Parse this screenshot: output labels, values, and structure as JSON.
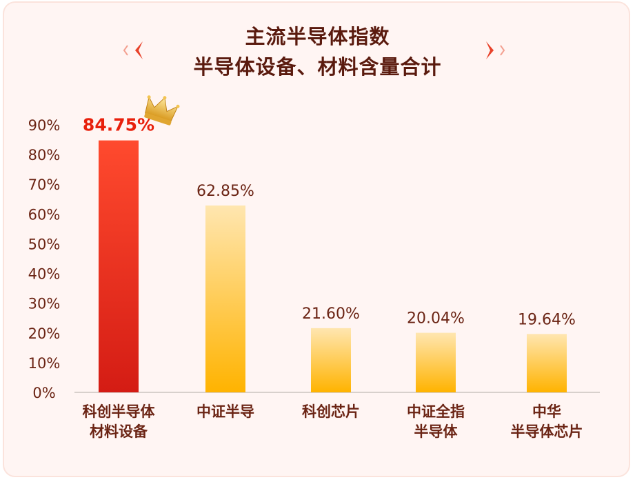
{
  "title_line1": "主流半导体指数",
  "title_line2": "半导体设备、材料含量合计",
  "colors": {
    "title": "#5a1a0e",
    "highlight_bar_top": "#ff4a2e",
    "highlight_bar_bottom": "#d41c14",
    "bar_top": "#ffe6b0",
    "bar_bottom": "#ffb300",
    "highlight_label": "#e8200c",
    "axis_text": "#6b2414",
    "ornament": "#e8422a"
  },
  "icons": {
    "crown": "crown-icon"
  },
  "chart_data": {
    "type": "bar",
    "categories": [
      [
        "科创半导体",
        "材料设备"
      ],
      [
        "中证半导"
      ],
      [
        "科创芯片"
      ],
      [
        "中证全指",
        "半导体"
      ],
      [
        "中华",
        "半导体芯片"
      ]
    ],
    "values": [
      84.75,
      62.85,
      21.6,
      20.04,
      19.64
    ],
    "data_labels": [
      "84.75%",
      "62.85%",
      "21.60%",
      "20.04%",
      "19.64%"
    ],
    "highlight_index": 0,
    "yticks": [
      "0%",
      "10%",
      "20%",
      "30%",
      "40%",
      "50%",
      "60%",
      "70%",
      "80%",
      "90%"
    ],
    "ylim": [
      0,
      90
    ],
    "grid": false,
    "title": "主流半导体指数 半导体设备、材料含量合计"
  }
}
